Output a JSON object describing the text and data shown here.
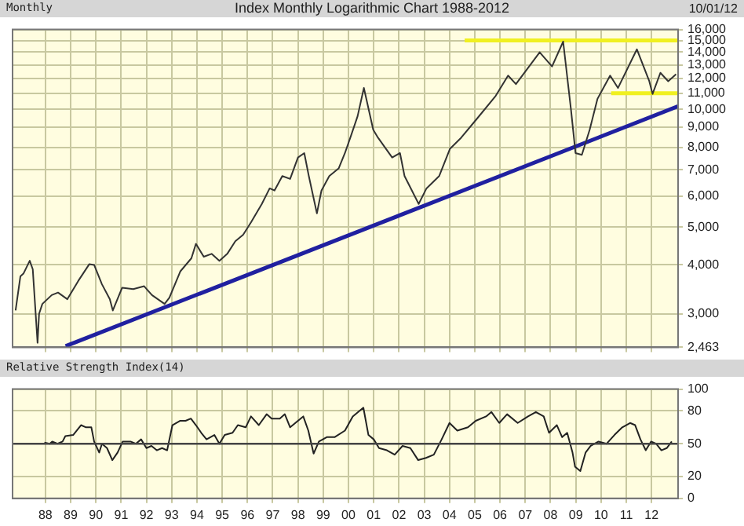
{
  "chart_data": [
    {
      "type": "line",
      "title": "Index Monthly Logarithmic Chart 1988-2012",
      "subtitle": "Monthly",
      "annotations": [
        "10/01/12"
      ],
      "log": true,
      "grid": true,
      "marker": "none",
      "tick_labels": "y",
      "xlim": [
        1986.7,
        2013.05
      ],
      "xticks": [
        {
          "value": 1988,
          "label": null
        },
        {
          "value": 1989,
          "label": null
        },
        {
          "value": 1990,
          "label": null
        },
        {
          "value": 1991,
          "label": null
        },
        {
          "value": 1992,
          "label": null
        },
        {
          "value": 1993,
          "label": null
        },
        {
          "value": 1994,
          "label": null
        },
        {
          "value": 1995,
          "label": null
        },
        {
          "value": 1996,
          "label": null
        },
        {
          "value": 1997,
          "label": null
        },
        {
          "value": 1998,
          "label": null
        },
        {
          "value": 1999,
          "label": null
        },
        {
          "value": 2000,
          "label": null
        },
        {
          "value": 2001,
          "label": null
        },
        {
          "value": 2002,
          "label": null
        },
        {
          "value": 2003,
          "label": null
        },
        {
          "value": 2004,
          "label": null
        },
        {
          "value": 2005,
          "label": null
        },
        {
          "value": 2006,
          "label": null
        },
        {
          "value": 2007,
          "label": null
        },
        {
          "value": 2008,
          "label": null
        },
        {
          "value": 2009,
          "label": null
        },
        {
          "value": 2010,
          "label": null
        },
        {
          "value": 2011,
          "label": null
        },
        {
          "value": 2012,
          "label": null
        }
      ],
      "ylim": [
        2463,
        16000
      ],
      "yticks": [
        {
          "value": 2463,
          "label": "2,463"
        },
        {
          "value": 3000,
          "label": "3,000"
        },
        {
          "value": 4000,
          "label": "4,000"
        },
        {
          "value": 5000,
          "label": "5,000"
        },
        {
          "value": 6000,
          "label": "6,000"
        },
        {
          "value": 7000,
          "label": "7,000"
        },
        {
          "value": 8000,
          "label": "8,000"
        },
        {
          "value": 9000,
          "label": "9,000"
        },
        {
          "value": 10000,
          "label": "10,000"
        },
        {
          "value": 11000,
          "label": "11,000"
        },
        {
          "value": 12000,
          "label": "12,000"
        },
        {
          "value": 13000,
          "label": "13,000"
        },
        {
          "value": 14000,
          "label": "14,000"
        },
        {
          "value": 15000,
          "label": "15,000"
        },
        {
          "value": 16000,
          "label": "16,000"
        }
      ],
      "series": [
        {
          "color": "#333333",
          "x": [
            1986.82,
            1987.01,
            1987.13,
            1987.38,
            1987.5,
            1987.69,
            1987.75,
            1987.88,
            1988.25,
            1988.5,
            1988.87,
            1989.3,
            1989.74,
            1989.93,
            1990.24,
            1990.55,
            1990.67,
            1991.04,
            1991.48,
            1991.91,
            1992.22,
            1992.72,
            1992.91,
            1993.34,
            1993.78,
            1993.96,
            1994.27,
            1994.58,
            1994.89,
            1995.2,
            1995.52,
            1995.83,
            1996.14,
            1996.57,
            1996.88,
            1997.07,
            1997.38,
            1997.69,
            1998.0,
            1998.25,
            1998.43,
            1998.75,
            1998.93,
            1999.24,
            1999.61,
            1999.86,
            2000.11,
            2000.36,
            2000.61,
            2000.98,
            2001.17,
            2001.73,
            2002.04,
            2002.22,
            2002.78,
            2003.09,
            2003.59,
            2004.02,
            2004.46,
            2005.08,
            2005.83,
            2006.32,
            2006.63,
            2007.57,
            2008.06,
            2008.5,
            2008.81,
            2008.99,
            2009.24,
            2009.55,
            2009.86,
            2010.36,
            2010.67,
            2011.42,
            2011.91,
            2012.04,
            2012.35,
            2012.66,
            2012.97
          ],
          "values": [
            3060,
            3740,
            3800,
            4100,
            3900,
            2530,
            3000,
            3180,
            3350,
            3400,
            3270,
            3640,
            4020,
            4000,
            3570,
            3270,
            3060,
            3500,
            3470,
            3530,
            3350,
            3180,
            3300,
            3850,
            4160,
            4530,
            4200,
            4270,
            4100,
            4270,
            4600,
            4780,
            5140,
            5730,
            6280,
            6200,
            6750,
            6640,
            7530,
            7730,
            6750,
            5420,
            6200,
            6750,
            7060,
            7730,
            8600,
            9600,
            11340,
            8870,
            8460,
            7530,
            7730,
            6750,
            5730,
            6280,
            6750,
            7930,
            8460,
            9450,
            10830,
            12200,
            11600,
            13990,
            12870,
            14900,
            9980,
            7730,
            7650,
            8870,
            10640,
            12200,
            11340,
            14240,
            11800,
            10950,
            12400,
            11800,
            12300
          ]
        },
        {
          "color": "#2020a0",
          "x": [
            1988.8,
            2013.05
          ],
          "values": [
            2480,
            10180
          ]
        },
        {
          "color": "#f0f020",
          "x": [
            2004.6,
            2013.05
          ],
          "values": [
            15000,
            15000
          ]
        },
        {
          "color": "#f0f020",
          "x": [
            2010.4,
            2013.05
          ],
          "values": [
            11000,
            11000
          ]
        }
      ]
    },
    {
      "type": "line",
      "title": "Relative Strength Index(14)",
      "grid": true,
      "marker": "none",
      "xlim": [
        1986.7,
        2013.05
      ],
      "xticks": [
        {
          "value": 1988,
          "label": "88"
        },
        {
          "value": 1989,
          "label": "89"
        },
        {
          "value": 1990,
          "label": "90"
        },
        {
          "value": 1991,
          "label": "91"
        },
        {
          "value": 1992,
          "label": "92"
        },
        {
          "value": 1993,
          "label": "93"
        },
        {
          "value": 1994,
          "label": "94"
        },
        {
          "value": 1995,
          "label": "95"
        },
        {
          "value": 1996,
          "label": "96"
        },
        {
          "value": 1997,
          "label": "97"
        },
        {
          "value": 1998,
          "label": "98"
        },
        {
          "value": 1999,
          "label": "99"
        },
        {
          "value": 2000,
          "label": "00"
        },
        {
          "value": 2001,
          "label": "01"
        },
        {
          "value": 2002,
          "label": "02"
        },
        {
          "value": 2003,
          "label": "03"
        },
        {
          "value": 2004,
          "label": "04"
        },
        {
          "value": 2005,
          "label": "05"
        },
        {
          "value": 2006,
          "label": "06"
        },
        {
          "value": 2007,
          "label": "07"
        },
        {
          "value": 2008,
          "label": "08"
        },
        {
          "value": 2009,
          "label": "09"
        },
        {
          "value": 2010,
          "label": "10"
        },
        {
          "value": 2011,
          "label": "11"
        },
        {
          "value": 2012,
          "label": "12"
        }
      ],
      "ylim": [
        0,
        100
      ],
      "yticks": [
        0,
        20,
        50,
        80,
        100
      ],
      "ref_lines": [
        {
          "axis": "y",
          "value": 50,
          "color": "#444444"
        }
      ],
      "series": [
        {
          "color": "#222222",
          "x": [
            1987.96,
            1988.17,
            1988.27,
            1988.48,
            1988.68,
            1988.79,
            1989.1,
            1989.41,
            1989.61,
            1989.82,
            1989.93,
            1990.13,
            1990.24,
            1990.44,
            1990.65,
            1990.86,
            1991.06,
            1991.37,
            1991.58,
            1991.79,
            1992.0,
            1992.2,
            1992.41,
            1992.62,
            1992.82,
            1993.03,
            1993.34,
            1993.55,
            1993.76,
            1993.96,
            1994.17,
            1994.38,
            1994.69,
            1994.89,
            1995.1,
            1995.41,
            1995.62,
            1995.93,
            1996.14,
            1996.45,
            1996.76,
            1996.96,
            1997.28,
            1997.48,
            1997.69,
            1998.0,
            1998.21,
            1998.41,
            1998.62,
            1998.83,
            1999.14,
            1999.45,
            1999.86,
            2000.17,
            2000.59,
            2000.79,
            2001.0,
            2001.21,
            2001.52,
            2001.83,
            2002.14,
            2002.45,
            2002.76,
            2003.07,
            2003.38,
            2003.69,
            2004.0,
            2004.31,
            2004.73,
            2005.04,
            2005.45,
            2005.66,
            2005.97,
            2006.28,
            2006.7,
            2007.11,
            2007.42,
            2007.73,
            2007.94,
            2008.25,
            2008.46,
            2008.66,
            2008.87,
            2008.97,
            2009.18,
            2009.39,
            2009.59,
            2009.9,
            2010.22,
            2010.53,
            2010.84,
            2011.15,
            2011.35,
            2011.56,
            2011.77,
            2011.98,
            2012.18,
            2012.39,
            2012.6,
            2012.8
          ],
          "values": [
            51,
            50,
            52,
            50,
            52,
            57,
            58,
            67,
            65,
            65,
            52,
            42,
            50,
            46,
            35,
            42,
            52,
            52,
            50,
            54,
            46,
            48,
            44,
            46,
            44,
            67,
            71,
            71,
            73,
            67,
            60,
            54,
            58,
            50,
            58,
            60,
            67,
            65,
            75,
            67,
            77,
            73,
            73,
            77,
            65,
            71,
            75,
            62,
            41,
            52,
            56,
            56,
            62,
            75,
            83,
            58,
            54,
            46,
            44,
            40,
            48,
            46,
            35,
            37,
            40,
            54,
            69,
            62,
            65,
            71,
            75,
            79,
            69,
            77,
            69,
            75,
            79,
            75,
            60,
            67,
            56,
            60,
            42,
            29,
            25,
            42,
            48,
            52,
            50,
            58,
            65,
            69,
            67,
            54,
            44,
            52,
            50,
            44,
            46,
            52
          ]
        }
      ]
    }
  ]
}
